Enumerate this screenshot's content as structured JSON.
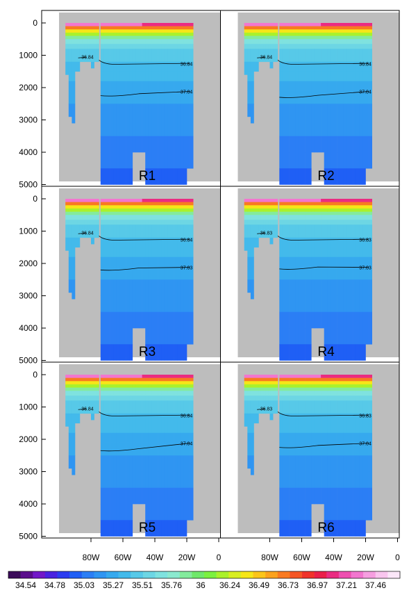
{
  "chart_data": {
    "type": "heatmap",
    "description_free": true,
    "yticks": [
      "0",
      "1000",
      "2000",
      "3000",
      "4000",
      "5000"
    ],
    "ytick_values": [
      0,
      1000,
      2000,
      3000,
      4000,
      5000
    ],
    "xticks": [
      "80W",
      "60W",
      "40W",
      "20W",
      "0"
    ],
    "xtick_values": [
      -80,
      -60,
      -40,
      -20,
      0
    ],
    "xlim": [
      -100,
      0
    ],
    "ylim": [
      5200,
      0
    ],
    "panels": [
      {
        "label": "R1",
        "contours": [
          "36.84",
          "36.84",
          "37.04"
        ],
        "deep_depth": 2250
      },
      {
        "label": "R2",
        "contours": [
          "36.84",
          "36.84",
          "37.04"
        ],
        "deep_depth": 2300
      },
      {
        "label": "R3",
        "contours": [
          "36.84",
          "36.84",
          "37.03"
        ],
        "deep_depth": 2200
      },
      {
        "label": "R4",
        "contours": [
          "36.83",
          "36.83",
          "37.03"
        ],
        "deep_depth": 2170
      },
      {
        "label": "R5",
        "contours": [
          "36.84",
          "36.84",
          "37.04"
        ],
        "deep_depth": 2350
      },
      {
        "label": "R6",
        "contours": [
          "36.83",
          "36.83",
          "37.04"
        ],
        "deep_depth": 2250
      }
    ],
    "colorbar": {
      "labels": [
        "34.54",
        "34.78",
        "35.03",
        "35.27",
        "35.51",
        "35.76",
        "36",
        "36.24",
        "36.49",
        "36.73",
        "36.97",
        "37.21",
        "37.46"
      ],
      "colors": [
        "#3b0b59",
        "#5b0d8c",
        "#7217c8",
        "#4a22e0",
        "#2c3cf0",
        "#1f5ff5",
        "#2b7ef5",
        "#2f95f2",
        "#36a9ee",
        "#43baeb",
        "#57c9e8",
        "#6dd6e4",
        "#7fe2df",
        "#8be9cf",
        "#84eb9c",
        "#6fe86a",
        "#7bf13f",
        "#aaf12b",
        "#d8ee21",
        "#f6e618",
        "#fbc51a",
        "#fba21d",
        "#f97a21",
        "#f55625",
        "#f0332a",
        "#ea1f4a",
        "#ea2c82",
        "#ee4fb0",
        "#f276cf",
        "#f69ee0",
        "#f9c5ee",
        "#fbe6f8"
      ]
    }
  }
}
